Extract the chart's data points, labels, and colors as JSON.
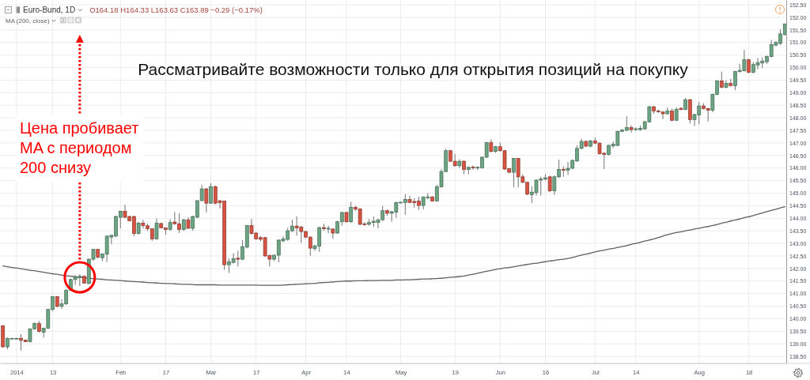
{
  "chart_data": {
    "type": "candlestick",
    "title": "Euro-Bund, 1D",
    "subtitle": "Рассматривайте возможности только для открытия позиций на покупку",
    "annotations": [
      "O164.18 H164.33 L163.63 C163.89 −0.29 (−0.17%)",
      "Цена пробивает\nMA с периодом\n200 снизу"
    ],
    "categories": [
      null,
      null,
      null,
      "2014",
      null,
      null,
      null,
      null,
      null,
      null,
      null,
      "13",
      null,
      null,
      null,
      null,
      null,
      null,
      null,
      null,
      null,
      null,
      null,
      null,
      null,
      null,
      "Feb",
      null,
      null,
      null,
      null,
      null,
      null,
      null,
      null,
      null,
      "17",
      null,
      null,
      null,
      null,
      null,
      null,
      null,
      null,
      null,
      "Mar",
      null,
      null,
      null,
      null,
      null,
      null,
      null,
      null,
      null,
      "17",
      null,
      null,
      null,
      null,
      null,
      null,
      null,
      null,
      null,
      null,
      "Apr",
      null,
      null,
      null,
      null,
      null,
      null,
      null,
      null,
      "14",
      null,
      null,
      null,
      null,
      null,
      null,
      null,
      null,
      null,
      null,
      null,
      "May",
      null,
      null,
      null,
      null,
      null,
      null,
      null,
      null,
      null,
      null,
      null,
      "19",
      null,
      null,
      null,
      null,
      null,
      null,
      null,
      null,
      null,
      "Jun",
      null,
      null,
      null,
      null,
      null,
      null,
      null,
      null,
      null,
      "16",
      null,
      null,
      null,
      null,
      null,
      null,
      null,
      null,
      null,
      null,
      "Jul",
      null,
      null,
      null,
      null,
      null,
      null,
      null,
      null,
      "14",
      null,
      null,
      null,
      null,
      null,
      null,
      null,
      null,
      null,
      null,
      null,
      null,
      null,
      "Aug",
      null,
      null,
      null,
      null,
      null,
      null,
      null,
      null,
      null,
      null,
      "18",
      null,
      null,
      null,
      null,
      null,
      null,
      null,
      null
    ],
    "ohlc": [
      [
        139.72,
        139.75,
        138.85,
        138.88
      ],
      [
        138.88,
        139.25,
        138.78,
        139.22
      ],
      [
        139.21,
        139.23,
        139.2,
        139.22
      ],
      [
        139.22,
        139.23,
        139.21,
        139.22
      ],
      [
        139.22,
        139.39,
        138.73,
        139.14
      ],
      [
        139.15,
        139.17,
        139.07,
        139.09
      ],
      [
        139.09,
        139.6,
        139.05,
        139.6
      ],
      [
        139.6,
        139.85,
        139.55,
        139.81
      ],
      [
        139.81,
        139.91,
        139.45,
        139.5
      ],
      [
        139.46,
        139.64,
        139.25,
        139.62
      ],
      [
        139.62,
        140.37,
        139.6,
        140.37
      ],
      [
        140.37,
        140.9,
        140.3,
        140.88
      ],
      [
        140.88,
        140.9,
        140.45,
        140.49
      ],
      [
        140.49,
        140.77,
        140.4,
        140.59
      ],
      [
        140.59,
        141.16,
        140.55,
        141.14
      ],
      [
        141.14,
        141.6,
        141.1,
        141.56
      ],
      [
        141.56,
        141.74,
        141.35,
        141.66
      ],
      [
        141.63,
        141.77,
        141.3,
        141.69
      ],
      [
        141.69,
        141.72,
        141.4,
        141.42
      ],
      [
        141.4,
        142.4,
        141.38,
        142.37
      ],
      [
        142.37,
        142.78,
        142.3,
        142.76
      ],
      [
        142.76,
        142.78,
        142.4,
        142.45
      ],
      [
        142.43,
        142.6,
        142.29,
        142.58
      ],
      [
        142.57,
        143.3,
        142.26,
        143.29
      ],
      [
        143.25,
        143.34,
        142.97,
        143.32
      ],
      [
        143.29,
        144.1,
        143.25,
        144.07
      ],
      [
        144.04,
        144.3,
        143.6,
        144.28
      ],
      [
        144.28,
        144.54,
        144.0,
        144.04
      ],
      [
        144.07,
        144.1,
        143.88,
        143.9
      ],
      [
        144.07,
        144.1,
        143.29,
        143.39
      ],
      [
        143.39,
        143.85,
        143.35,
        143.81
      ],
      [
        143.81,
        143.94,
        143.6,
        143.71
      ],
      [
        143.7,
        143.78,
        143.5,
        143.58
      ],
      [
        143.58,
        143.6,
        143.1,
        143.18
      ],
      [
        143.18,
        143.99,
        143.15,
        143.81
      ],
      [
        143.79,
        143.82,
        143.6,
        143.62
      ],
      [
        143.62,
        143.64,
        143.34,
        143.55
      ],
      [
        143.55,
        143.97,
        143.5,
        143.83
      ],
      [
        143.85,
        144.25,
        143.75,
        143.78
      ],
      [
        143.78,
        144.2,
        143.41,
        143.55
      ],
      [
        143.55,
        143.97,
        143.5,
        143.94
      ],
      [
        143.94,
        144.04,
        143.58,
        143.6
      ],
      [
        143.6,
        144.1,
        143.5,
        144.07
      ],
      [
        144.04,
        144.72,
        144.0,
        144.7
      ],
      [
        144.7,
        145.33,
        144.68,
        145.17
      ],
      [
        145.17,
        145.2,
        144.23,
        144.6
      ],
      [
        144.6,
        145.4,
        144.58,
        145.26
      ],
      [
        145.26,
        145.3,
        144.55,
        144.6
      ],
      [
        144.7,
        144.72,
        144.39,
        144.62
      ],
      [
        144.68,
        144.7,
        141.95,
        142.15
      ],
      [
        142.15,
        142.4,
        141.82,
        142.26
      ],
      [
        142.24,
        142.61,
        142.2,
        142.39
      ],
      [
        142.41,
        142.71,
        142.08,
        142.37
      ],
      [
        142.37,
        143.13,
        142.33,
        142.87
      ],
      [
        142.85,
        143.73,
        142.8,
        143.71
      ],
      [
        143.71,
        143.97,
        143.35,
        143.39
      ],
      [
        143.41,
        143.45,
        143.15,
        143.18
      ],
      [
        143.23,
        143.29,
        143.08,
        143.16
      ],
      [
        143.23,
        143.25,
        142.45,
        142.5
      ],
      [
        142.52,
        142.55,
        142.08,
        142.37
      ],
      [
        142.37,
        142.55,
        142.3,
        142.53
      ],
      [
        142.53,
        143.15,
        142.24,
        143.13
      ],
      [
        143.1,
        143.29,
        143.05,
        143.18
      ],
      [
        143.16,
        143.62,
        143.1,
        143.5
      ],
      [
        143.5,
        143.94,
        143.45,
        143.69
      ],
      [
        143.69,
        144.07,
        143.3,
        143.62
      ],
      [
        143.65,
        143.7,
        143.02,
        143.47
      ],
      [
        143.47,
        143.5,
        143.2,
        143.25
      ],
      [
        143.25,
        143.28,
        142.5,
        142.81
      ],
      [
        142.79,
        142.95,
        142.7,
        142.9
      ],
      [
        142.89,
        143.65,
        142.66,
        143.63
      ],
      [
        143.63,
        143.78,
        143.5,
        143.58
      ],
      [
        143.58,
        143.7,
        143.4,
        143.6
      ],
      [
        143.57,
        143.6,
        143.18,
        143.41
      ],
      [
        143.41,
        143.9,
        143.38,
        143.86
      ],
      [
        143.86,
        144.25,
        143.7,
        144.23
      ],
      [
        144.23,
        144.26,
        143.82,
        143.86
      ],
      [
        143.86,
        144.65,
        143.82,
        144.44
      ],
      [
        144.44,
        144.49,
        144.3,
        144.36
      ],
      [
        144.37,
        144.4,
        143.72,
        143.76
      ],
      [
        143.78,
        143.84,
        143.7,
        143.76
      ],
      [
        143.76,
        143.97,
        143.7,
        143.83
      ],
      [
        143.83,
        144.07,
        143.65,
        143.88
      ],
      [
        143.83,
        143.97,
        143.6,
        143.94
      ],
      [
        143.94,
        144.49,
        143.9,
        144.3
      ],
      [
        144.3,
        144.35,
        144.1,
        144.2
      ],
      [
        144.2,
        144.3,
        143.86,
        144.26
      ],
      [
        144.24,
        144.65,
        144.02,
        144.63
      ],
      [
        144.62,
        144.65,
        144.6,
        144.64
      ],
      [
        144.63,
        144.96,
        144.13,
        144.75
      ],
      [
        144.75,
        144.9,
        144.6,
        144.63
      ],
      [
        144.67,
        144.8,
        144.42,
        144.62
      ],
      [
        144.68,
        144.85,
        144.33,
        144.51
      ],
      [
        144.51,
        144.87,
        144.35,
        144.84
      ],
      [
        144.83,
        145.0,
        144.75,
        144.85
      ],
      [
        144.85,
        144.88,
        144.66,
        144.69
      ],
      [
        144.69,
        145.33,
        144.66,
        145.25
      ],
      [
        145.25,
        145.96,
        145.22,
        145.86
      ],
      [
        145.86,
        146.77,
        145.83,
        146.69
      ],
      [
        146.69,
        146.72,
        146.24,
        146.27
      ],
      [
        146.27,
        146.56,
        146.05,
        146.09
      ],
      [
        146.09,
        146.35,
        146.01,
        146.27
      ],
      [
        146.27,
        146.3,
        145.75,
        145.94
      ],
      [
        145.94,
        146.06,
        145.75,
        146.03
      ],
      [
        146.04,
        146.1,
        145.93,
        146.02
      ],
      [
        146.02,
        146.06,
        145.92,
        146.03
      ],
      [
        146.01,
        146.46,
        145.98,
        146.43
      ],
      [
        146.43,
        147.04,
        146.4,
        147.01
      ],
      [
        147.01,
        147.14,
        146.62,
        146.66
      ],
      [
        146.66,
        146.88,
        146.6,
        146.85
      ],
      [
        146.85,
        147.01,
        146.65,
        146.69
      ],
      [
        146.69,
        146.72,
        145.92,
        145.96
      ],
      [
        145.98,
        146.0,
        145.8,
        145.83
      ],
      [
        145.83,
        146.4,
        145.23,
        146.38
      ],
      [
        146.38,
        146.4,
        145.23,
        145.65
      ],
      [
        145.65,
        145.75,
        145.4,
        145.43
      ],
      [
        145.43,
        145.45,
        144.92,
        144.96
      ],
      [
        144.94,
        145.28,
        144.6,
        145.04
      ],
      [
        145.02,
        145.55,
        144.9,
        145.52
      ],
      [
        145.52,
        145.65,
        144.9,
        145.56
      ],
      [
        145.56,
        145.75,
        145.5,
        145.61
      ],
      [
        145.65,
        145.7,
        145.05,
        145.09
      ],
      [
        145.09,
        145.7,
        144.93,
        145.65
      ],
      [
        145.65,
        146.33,
        145.6,
        145.94
      ],
      [
        145.95,
        146.07,
        145.65,
        145.91
      ],
      [
        145.91,
        146.24,
        145.72,
        145.99
      ],
      [
        145.99,
        146.35,
        145.95,
        146.3
      ],
      [
        146.28,
        146.9,
        146.25,
        146.78
      ],
      [
        146.78,
        147.17,
        146.75,
        147.06
      ],
      [
        147.06,
        147.1,
        146.83,
        146.87
      ],
      [
        146.87,
        147.12,
        146.82,
        147.08
      ],
      [
        147.08,
        147.22,
        146.95,
        146.99
      ],
      [
        146.99,
        147.02,
        146.53,
        146.57
      ],
      [
        146.59,
        146.62,
        145.96,
        146.54
      ],
      [
        146.54,
        146.93,
        146.5,
        146.9
      ],
      [
        146.88,
        147.06,
        146.8,
        146.95
      ],
      [
        146.9,
        147.48,
        146.87,
        147.46
      ],
      [
        147.46,
        147.55,
        147.43,
        147.51
      ],
      [
        147.5,
        148.06,
        147.48,
        147.61
      ],
      [
        147.61,
        147.7,
        147.41,
        147.53
      ],
      [
        147.54,
        147.62,
        147.48,
        147.56
      ],
      [
        147.53,
        147.69,
        147.48,
        147.58
      ],
      [
        147.56,
        147.89,
        147.52,
        147.84
      ],
      [
        147.84,
        148.47,
        147.8,
        148.44
      ],
      [
        148.44,
        148.47,
        148.16,
        148.27
      ],
      [
        148.27,
        148.32,
        148.2,
        148.26
      ],
      [
        148.23,
        148.26,
        147.95,
        148.16
      ],
      [
        148.16,
        148.42,
        148.13,
        148.27
      ],
      [
        148.27,
        148.37,
        147.86,
        147.9
      ],
      [
        147.9,
        148.42,
        147.88,
        148.34
      ],
      [
        148.38,
        148.42,
        148.3,
        148.33
      ],
      [
        148.33,
        148.79,
        148.3,
        148.72
      ],
      [
        148.72,
        148.75,
        147.77,
        147.93
      ],
      [
        147.93,
        148.16,
        147.67,
        148.13
      ],
      [
        148.11,
        148.63,
        147.74,
        148.47
      ],
      [
        148.47,
        148.58,
        148.33,
        148.37
      ],
      [
        148.37,
        148.4,
        147.85,
        148.3
      ],
      [
        148.3,
        148.96,
        148.22,
        148.93
      ],
      [
        148.93,
        149.5,
        148.9,
        149.47
      ],
      [
        149.47,
        149.84,
        149.18,
        149.21
      ],
      [
        149.21,
        149.49,
        149.17,
        149.37
      ],
      [
        149.37,
        149.55,
        149.25,
        149.28
      ],
      [
        149.28,
        149.87,
        149.1,
        149.84
      ],
      [
        149.84,
        150.15,
        149.8,
        149.89
      ],
      [
        149.87,
        150.7,
        149.84,
        150.31
      ],
      [
        150.31,
        150.35,
        149.77,
        149.81
      ],
      [
        149.81,
        150.22,
        149.77,
        150.12
      ],
      [
        150.1,
        150.38,
        149.94,
        150.2
      ],
      [
        150.18,
        150.41,
        149.98,
        150.26
      ],
      [
        150.23,
        150.48,
        150.15,
        150.44
      ],
      [
        150.44,
        151.1,
        150.4,
        150.91
      ],
      [
        150.89,
        151.05,
        150.85,
        151.0
      ],
      [
        150.96,
        151.52,
        150.9,
        151.34
      ],
      [
        151.31,
        151.76,
        151.28,
        151.73
      ]
    ],
    "colors": [
      "#d75442",
      "#6ba583",
      "#6ba583",
      "#6ba583",
      "#d75442",
      "#d75442",
      "#6ba583",
      "#6ba583",
      "#d75442",
      "#6ba583",
      "#6ba583",
      "#6ba583",
      "#d75442",
      "#6ba583",
      "#6ba583",
      "#6ba583",
      "#6ba583",
      "#6ba583",
      "#d75442",
      "#6ba583",
      "#6ba583",
      "#d75442",
      "#6ba583",
      "#6ba583",
      "#6ba583",
      "#6ba583",
      "#6ba583",
      "#d75442",
      "#d75442",
      "#d75442",
      "#6ba583",
      "#d75442",
      "#d75442",
      "#d75442",
      "#6ba583",
      "#d75442",
      "#d75442",
      "#6ba583",
      "#d75442",
      "#d75442",
      "#6ba583",
      "#d75442",
      "#6ba583",
      "#6ba583",
      "#6ba583",
      "#d75442",
      "#6ba583",
      "#d75442",
      "#d75442",
      "#d75442",
      "#6ba583",
      "#6ba583",
      "#d75442",
      "#6ba583",
      "#6ba583",
      "#d75442",
      "#d75442",
      "#d75442",
      "#d75442",
      "#d75442",
      "#6ba583",
      "#6ba583",
      "#6ba583",
      "#6ba583",
      "#6ba583",
      "#d75442",
      "#d75442",
      "#d75442",
      "#d75442",
      "#6ba583",
      "#6ba583",
      "#d75442",
      "#6ba583",
      "#d75442",
      "#6ba583",
      "#6ba583",
      "#d75442",
      "#6ba583",
      "#d75442",
      "#d75442",
      "#d75442",
      "#6ba583",
      "#6ba583",
      "#6ba583",
      "#6ba583",
      "#d75442",
      "#6ba583",
      "#6ba583",
      "#6ba583",
      "#6ba583",
      "#d75442",
      "#d75442",
      "#d75442",
      "#6ba583",
      "#6ba583",
      "#d75442",
      "#6ba583",
      "#6ba583",
      "#6ba583",
      "#d75442",
      "#d75442",
      "#6ba583",
      "#d75442",
      "#6ba583",
      "#d75442",
      "#6ba583",
      "#6ba583",
      "#6ba583",
      "#d75442",
      "#6ba583",
      "#d75442",
      "#d75442",
      "#d75442",
      "#6ba583",
      "#d75442",
      "#d75442",
      "#d75442",
      "#6ba583",
      "#6ba583",
      "#6ba583",
      "#6ba583",
      "#d75442",
      "#6ba583",
      "#6ba583",
      "#d75442",
      "#6ba583",
      "#6ba583",
      "#6ba583",
      "#6ba583",
      "#d75442",
      "#6ba583",
      "#d75442",
      "#d75442",
      "#d75442",
      "#6ba583",
      "#6ba583",
      "#6ba583",
      "#6ba583",
      "#6ba583",
      "#d75442",
      "#6ba583",
      "#6ba583",
      "#6ba583",
      "#6ba583",
      "#d75442",
      "#d75442",
      "#d75442",
      "#6ba583",
      "#d75442",
      "#6ba583",
      "#d75442",
      "#6ba583",
      "#d75442",
      "#6ba583",
      "#6ba583",
      "#d75442",
      "#d75442",
      "#6ba583",
      "#6ba583",
      "#d75442",
      "#6ba583",
      "#d75442",
      "#6ba583",
      "#6ba583",
      "#6ba583",
      "#d75442",
      "#6ba583",
      "#6ba583",
      "#6ba583",
      "#6ba583",
      "#6ba583",
      "#6ba583",
      "#6ba583",
      "#6ba583"
    ],
    "series": [
      {
        "type": "line",
        "name": "MA (200, close)",
        "color": "#5f5f5f",
        "values": [
          142.1,
          142.07,
          142.04,
          142.02,
          141.99,
          141.96,
          141.93,
          141.91,
          141.88,
          141.85,
          141.82,
          141.79,
          141.77,
          141.74,
          141.71,
          141.69,
          141.67,
          141.65,
          141.63,
          141.61,
          141.59,
          141.58,
          141.57,
          141.55,
          141.54,
          141.53,
          141.52,
          141.5,
          141.49,
          141.48,
          141.47,
          141.46,
          141.44,
          141.43,
          141.42,
          141.41,
          141.4,
          141.4,
          141.39,
          141.38,
          141.37,
          141.37,
          141.36,
          141.35,
          141.35,
          141.35,
          141.35,
          141.35,
          141.34,
          141.34,
          141.34,
          141.34,
          141.34,
          141.34,
          141.34,
          141.34,
          141.34,
          141.33,
          141.33,
          141.33,
          141.33,
          141.33,
          141.34,
          141.35,
          141.36,
          141.37,
          141.38,
          141.39,
          141.4,
          141.41,
          141.43,
          141.44,
          141.45,
          141.46,
          141.48,
          141.49,
          141.5,
          141.5,
          141.51,
          141.51,
          141.51,
          141.52,
          141.52,
          141.52,
          141.53,
          141.53,
          141.53,
          141.54,
          141.54,
          141.55,
          141.55,
          141.56,
          141.57,
          141.58,
          141.58,
          141.59,
          141.6,
          141.61,
          141.63,
          141.65,
          141.66,
          141.68,
          141.7,
          141.74,
          141.77,
          141.81,
          141.85,
          141.89,
          141.92,
          141.96,
          141.99,
          142.02,
          142.04,
          142.07,
          142.1,
          142.13,
          142.16,
          142.19,
          142.21,
          142.24,
          142.27,
          142.3,
          142.32,
          142.35,
          142.37,
          142.4,
          142.44,
          142.49,
          142.53,
          142.57,
          142.61,
          142.66,
          142.7,
          142.73,
          142.77,
          142.8,
          142.84,
          142.87,
          142.91,
          142.96,
          143.0,
          143.04,
          143.09,
          143.13,
          143.18,
          143.23,
          143.29,
          143.34,
          143.39,
          143.43,
          143.46,
          143.5,
          143.53,
          143.57,
          143.6,
          143.64,
          143.67,
          143.71,
          143.75,
          143.8,
          143.84,
          143.89,
          143.93,
          143.97,
          144.02,
          144.06,
          144.11,
          144.16,
          144.21,
          144.26,
          144.31,
          144.36,
          144.41,
          144.46
        ]
      }
    ],
    "ylim": [
      138.22,
      152.69
    ],
    "yticks": [
      {
        "value": 138.5,
        "label": "138.50"
      },
      {
        "value": 139,
        "label": "139.00"
      },
      {
        "value": 139.5,
        "label": "139.50"
      },
      {
        "value": 140,
        "label": "140.00"
      },
      {
        "value": 140.5,
        "label": "140.50"
      },
      {
        "value": 141,
        "label": "141.00"
      },
      {
        "value": 141.5,
        "label": "141.50"
      },
      {
        "value": 142,
        "label": "142.00"
      },
      {
        "value": 142.5,
        "label": "142.50"
      },
      {
        "value": 143,
        "label": "143.00"
      },
      {
        "value": 143.5,
        "label": "143.50"
      },
      {
        "value": 144,
        "label": "144.00"
      },
      {
        "value": 144.5,
        "label": "144.50"
      },
      {
        "value": 145,
        "label": "145.00"
      },
      {
        "value": 145.5,
        "label": "145.50"
      },
      {
        "value": 146,
        "label": "146.00"
      },
      {
        "value": 146.5,
        "label": "146.50"
      },
      {
        "value": 147,
        "label": "147.00"
      },
      {
        "value": 147.5,
        "label": "147.50"
      },
      {
        "value": 148,
        "label": "148.00"
      },
      {
        "value": 148.5,
        "label": "148.50"
      },
      {
        "value": 149,
        "label": "149.00"
      },
      {
        "value": 149.5,
        "label": "149.50"
      },
      {
        "value": 150,
        "label": "150.00"
      },
      {
        "value": 150.5,
        "label": "150.50"
      },
      {
        "value": 151,
        "label": "151.00"
      },
      {
        "value": 151.5,
        "label": "151.50"
      },
      {
        "value": 152,
        "label": "152.00"
      },
      {
        "value": 152.5,
        "label": "152.50"
      }
    ],
    "grid": true,
    "legend": "top left"
  }
}
